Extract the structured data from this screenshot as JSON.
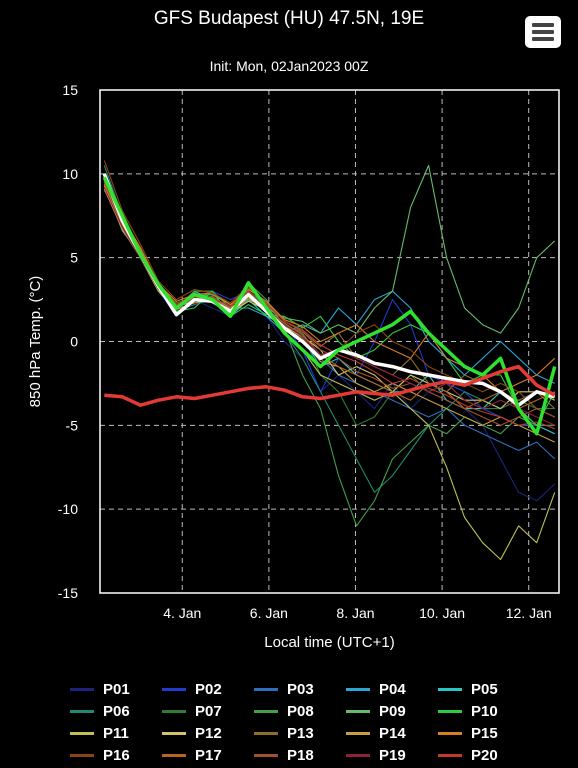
{
  "header": {
    "title": "GFS Budapest (HU) 47.5N, 19E",
    "subtitle": "Init: Mon, 02Jan2023 00Z",
    "menu_icon": "hamburger-menu-icon"
  },
  "chart_data": {
    "type": "line",
    "xlabel": "Local time (UTC+1)",
    "ylabel": "850 hPa Temp. (°C)",
    "xlim": [
      0.6,
      11.2
    ],
    "ylim": [
      -15,
      15
    ],
    "yticks": [
      15,
      10,
      5,
      0,
      -5,
      -10,
      -15
    ],
    "xticks": [
      {
        "x": 2.5,
        "label": "4. Jan"
      },
      {
        "x": 4.5,
        "label": "6. Jan"
      },
      {
        "x": 6.5,
        "label": "8. Jan"
      },
      {
        "x": 8.5,
        "label": "10. Jan"
      },
      {
        "x": 10.5,
        "label": "12. Jan"
      }
    ],
    "x_unit_note_visible": false,
    "grid": true,
    "series": [
      {
        "name": "P01",
        "color": "#1a237e",
        "values": [
          9.5,
          7,
          5,
          3,
          1.5,
          2.5,
          2,
          1.5,
          2.5,
          1.5,
          0,
          -1,
          -3,
          -2,
          -3,
          -4,
          -2.5,
          -4,
          -3,
          -3.5,
          -4,
          -5,
          -7,
          -9,
          -9.5,
          -8.5
        ]
      },
      {
        "name": "P02",
        "color": "#1e3ccf",
        "values": [
          9.5,
          7,
          5.5,
          3.5,
          2,
          2.5,
          3,
          2.5,
          3,
          2,
          1,
          -0.5,
          -3,
          -1,
          -2,
          0,
          2.5,
          1,
          -2,
          -2.5,
          -3,
          -4,
          -4.5,
          -5,
          -5,
          -5.5
        ]
      },
      {
        "name": "P03",
        "color": "#2f6fbf",
        "values": [
          9,
          7.5,
          5,
          3,
          1.8,
          2.2,
          2.5,
          2,
          3.5,
          2.2,
          1,
          0.5,
          -1,
          -2,
          -2.5,
          -3,
          -3.5,
          -4,
          -4.5,
          -4,
          -5,
          -5.5,
          -6,
          -6.5,
          -6,
          -7
        ]
      },
      {
        "name": "P04",
        "color": "#2aa5d6",
        "values": [
          9.8,
          7,
          5.2,
          3.2,
          2.2,
          2.8,
          2.6,
          2,
          2,
          1.5,
          0.5,
          1,
          0.5,
          2,
          1,
          2.5,
          3,
          2,
          0,
          -1,
          -2,
          -1,
          0,
          -1,
          -2,
          -2.5
        ]
      },
      {
        "name": "P05",
        "color": "#26c6c6",
        "values": [
          9.2,
          6.8,
          5,
          3,
          2,
          3,
          2.5,
          1.5,
          2.5,
          1.5,
          1,
          0.2,
          -1.5,
          -1,
          -2,
          -2.5,
          -3,
          -3,
          -2,
          -3.5,
          -4,
          -4,
          -3,
          -4,
          -5,
          -5.5
        ]
      },
      {
        "name": "P06",
        "color": "#1f8a70",
        "values": [
          10.5,
          7.5,
          5,
          3.5,
          2,
          2.5,
          3,
          1.5,
          3,
          2,
          0.5,
          -1,
          -3,
          -5,
          -7,
          -9,
          -8,
          -6.5,
          -5,
          -4,
          -3,
          -3.5,
          -4,
          -3,
          -4,
          -4.5
        ]
      },
      {
        "name": "P07",
        "color": "#2e7d32",
        "values": [
          9.5,
          7.2,
          5.5,
          3.2,
          2.3,
          2.6,
          2.4,
          1.8,
          3,
          1.8,
          1,
          0.5,
          -2,
          -3,
          -5,
          -4.5,
          -3,
          -2,
          -3,
          -2.5,
          -3.5,
          -4,
          -4,
          -3.5,
          -4,
          -4
        ]
      },
      {
        "name": "P08",
        "color": "#43a047",
        "values": [
          9.7,
          7,
          5,
          3,
          2,
          3,
          3,
          2,
          3.5,
          2.5,
          0.8,
          -2,
          -4,
          -8,
          -11,
          -9.5,
          -7,
          -6,
          -5,
          -5.5,
          -4.5,
          -5,
          -5.5,
          -4.5,
          -5,
          -5
        ]
      },
      {
        "name": "P09",
        "color": "#66bb6a",
        "values": [
          9.4,
          6.6,
          5.2,
          3.4,
          1.9,
          2.7,
          2.8,
          2.2,
          2.5,
          2,
          1.4,
          1.2,
          0.5,
          1,
          0.5,
          2,
          3,
          8,
          10.5,
          5,
          2,
          1,
          0.5,
          2,
          5,
          6
        ]
      },
      {
        "name": "P10",
        "color": "#2ecc40",
        "values": [
          10,
          7,
          5.5,
          3,
          1.8,
          2,
          3,
          1.5,
          2.2,
          1.6,
          1.5,
          0.8,
          1.5,
          0,
          -1,
          -0.5,
          0.5,
          1,
          0.5,
          -1,
          -2.5,
          -2,
          -2,
          -4,
          -5,
          -3
        ]
      },
      {
        "name": "P11",
        "color": "#c0c050",
        "values": [
          9.6,
          7.1,
          5.1,
          3.3,
          2.1,
          2.4,
          2.7,
          1.9,
          2.8,
          1.7,
          0.6,
          -0.5,
          -2,
          -2.5,
          -3,
          -3.5,
          -3,
          -4,
          -5,
          -7.5,
          -10.5,
          -12,
          -13,
          -11,
          -12,
          -9
        ]
      },
      {
        "name": "P12",
        "color": "#d4c468",
        "values": [
          9.3,
          6.9,
          5.3,
          3.1,
          2,
          2.9,
          2.3,
          1.7,
          2.4,
          1.9,
          0.9,
          0.3,
          -0.5,
          -2,
          -1.5,
          -2,
          -3,
          -2,
          -2.5,
          -3,
          -3.5,
          -3.5,
          -4,
          -3,
          -3,
          -3.5
        ]
      },
      {
        "name": "P13",
        "color": "#8d6e2f",
        "values": [
          9.8,
          7.3,
          5.4,
          3.5,
          2.2,
          2.6,
          2.6,
          2.1,
          3.2,
          2.3,
          1.2,
          0.6,
          -0.3,
          0.5,
          -1,
          -1.5,
          -2,
          -1,
          -2.5,
          -3,
          -2,
          -2.5,
          -3,
          -3.5,
          -3,
          -4
        ]
      },
      {
        "name": "P14",
        "color": "#c8a040",
        "values": [
          9.1,
          6.7,
          5,
          3,
          1.9,
          2.3,
          2.5,
          1.6,
          2.6,
          1.8,
          0.7,
          0.1,
          -1.2,
          -1.5,
          -2.5,
          -3,
          -2.5,
          -3,
          -3.5,
          -4,
          -4.5,
          -5,
          -4.5,
          -5,
          -5.5,
          -6
        ]
      },
      {
        "name": "P15",
        "color": "#d87f24",
        "values": [
          9.9,
          7.4,
          5.6,
          3.4,
          2.4,
          2.8,
          2.9,
          2.2,
          3.1,
          2.4,
          1.3,
          0.9,
          0,
          0.5,
          1,
          0,
          -0.5,
          -1,
          0.5,
          -1,
          -1.5,
          -2,
          -3,
          -2.5,
          -2,
          -1
        ]
      },
      {
        "name": "P16",
        "color": "#8b4513",
        "values": [
          10.8,
          7.8,
          5.8,
          3.6,
          2.5,
          3.1,
          2.9,
          2.3,
          3.3,
          2.1,
          0.8,
          0.2,
          -1,
          -0.5,
          0.5,
          1,
          0,
          -0.5,
          -1.5,
          -2,
          -2.5,
          -3,
          -2.5,
          -3,
          -4,
          -4.5
        ]
      },
      {
        "name": "P17",
        "color": "#b5651d",
        "values": [
          9.4,
          7,
          5.1,
          3.2,
          2.1,
          2.7,
          2.5,
          2,
          2.8,
          1.9,
          1.1,
          0.4,
          -0.8,
          -1.5,
          -2,
          -2.5,
          -3,
          -3.5,
          -2.5,
          -3,
          -4,
          -3.5,
          -3,
          -4,
          -3.5,
          -3
        ]
      },
      {
        "name": "P18",
        "color": "#a0522d",
        "values": [
          9.6,
          6.9,
          5.3,
          3.3,
          2.2,
          2.5,
          2.7,
          1.8,
          2.9,
          2,
          0.9,
          0.6,
          -0.5,
          -1,
          -1.8,
          -2.2,
          -2.8,
          -2.5,
          -3,
          -3.5,
          -4,
          -4.5,
          -5,
          -4.5,
          -4,
          -4.5
        ]
      },
      {
        "name": "P19",
        "color": "#8e2040",
        "values": [
          9.2,
          6.8,
          5,
          3.1,
          2,
          2.6,
          2.4,
          1.7,
          2.7,
          1.8,
          1,
          0.3,
          -0.8,
          -0.5,
          -1,
          -1.5,
          -2,
          -2.5,
          -3,
          -2.5,
          -3.5,
          -4,
          -3.5,
          -4,
          -4.5,
          -5
        ]
      },
      {
        "name": "P20",
        "color": "#c0392b",
        "values": [
          9.7,
          7.2,
          5.2,
          3.3,
          2.2,
          2.8,
          2.6,
          2.1,
          3,
          2.2,
          1.2,
          0.7,
          -0.2,
          -0.8,
          -1.2,
          -1.8,
          -2.5,
          -2.2,
          -2.8,
          -3.2,
          -3.8,
          -4.2,
          -4.5,
          -5,
          -4.8,
          -5.2
        ]
      },
      {
        "name": "",
        "color": "#ffffff",
        "role": "mean",
        "values": [
          10,
          7.2,
          5.2,
          3.3,
          1.6,
          2.5,
          2.4,
          1.8,
          2.8,
          1.8,
          0.8,
          0,
          -1,
          -0.5,
          -0.8,
          -1.3,
          -1.5,
          -1.8,
          -2,
          -2.2,
          -2.4,
          -2.5,
          -3,
          -3.8,
          -3,
          -3.3
        ]
      },
      {
        "name": "",
        "color": "#2ee22e",
        "role": "control",
        "values": [
          9.8,
          7.5,
          5.2,
          3.4,
          2,
          2.8,
          2.5,
          1.5,
          3.5,
          2,
          0.5,
          -0.5,
          -1.5,
          -0.5,
          0,
          0.5,
          1,
          1.8,
          0.5,
          -0.5,
          -1.5,
          -2,
          -1,
          -4,
          -5.5,
          -1.5
        ]
      },
      {
        "name": "",
        "color": "#e53935",
        "role": "climate",
        "values": [
          -3.2,
          -3.3,
          -3.8,
          -3.5,
          -3.3,
          -3.4,
          -3.2,
          -3,
          -2.8,
          -2.7,
          -2.9,
          -3.3,
          -3.4,
          -3.2,
          -3,
          -3.1,
          -3.2,
          -2.9,
          -2.6,
          -2.4,
          -2.6,
          -2.2,
          -1.8,
          -1.5,
          -2.6,
          -3.2
        ]
      }
    ]
  },
  "legend": [
    "P01",
    "P02",
    "P03",
    "P04",
    "P05",
    "P06",
    "P07",
    "P08",
    "P09",
    "P10",
    "P11",
    "P12",
    "P13",
    "P14",
    "P15",
    "P16",
    "P17",
    "P18",
    "P19",
    "P20"
  ]
}
